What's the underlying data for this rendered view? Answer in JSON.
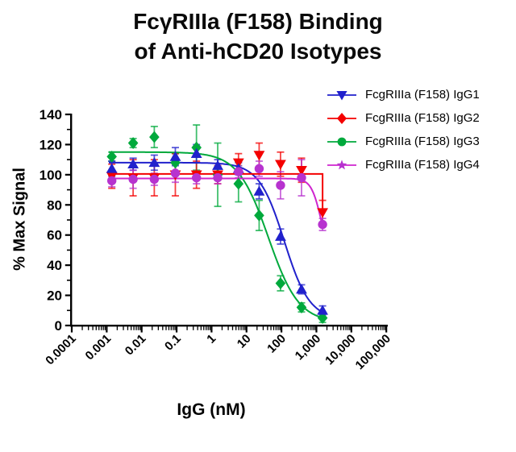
{
  "title": {
    "line1": "FcγRIIIa (F158) Binding",
    "line2": "of Anti-hCD20 Isotypes"
  },
  "axes": {
    "x_label": "IgG (nM)",
    "y_label": "% Max Signal",
    "x_scale": "log",
    "x_tick_labels": [
      "0.0001",
      "0.001",
      "0.01",
      "0.1",
      "1",
      "10",
      "100",
      "1,000",
      "10,000",
      "100,000"
    ],
    "x_log_range": [
      -4,
      5
    ],
    "y_ticks": [
      0,
      20,
      40,
      60,
      80,
      100,
      120,
      140
    ],
    "y_minor_ticks": [
      10,
      30,
      50,
      70,
      90,
      110,
      130
    ],
    "y_range": [
      0,
      140
    ],
    "grid": "off"
  },
  "legend": {
    "position": "top-right",
    "items": [
      "FcgRIIIa (F158) IgG1",
      "FcgRIIIa (F158) IgG2",
      "FcgRIIIa (F158) IgG3",
      "FcgRIIIa (F158) IgG4"
    ]
  },
  "chart_data": {
    "type": "scatter",
    "title": "FcγRIIIa (F158) Binding of Anti-hCD20 Isotypes",
    "xlabel": "IgG (nM)",
    "ylabel": "% Max Signal",
    "x_scale": "log",
    "x": [
      0.0014,
      0.0057,
      0.023,
      0.092,
      0.37,
      1.5,
      5.9,
      23,
      94,
      375,
      1500
    ],
    "series": [
      {
        "name": "FcgRIIIa (F158) IgG1",
        "color": "#2121cc",
        "marker": "triangle-up",
        "legend_marker": "triangle-down",
        "y": [
          104,
          107,
          108,
          112,
          114,
          106,
          104,
          89,
          59,
          24,
          10
        ],
        "err": [
          5,
          4,
          5,
          6,
          6,
          4,
          4,
          5,
          5,
          3,
          3
        ],
        "fit": {
          "type": "4pl",
          "top": 108,
          "bottom": 4,
          "ic50": 120,
          "hill": 1.2
        }
      },
      {
        "name": "FcgRIIIa (F158) IgG2",
        "color": "#f40000",
        "marker": "triangle-down",
        "legend_marker": "diamond",
        "y": [
          99,
          98,
          98,
          100,
          100,
          100,
          108,
          113,
          107,
          103,
          75
        ],
        "err": [
          8,
          12,
          12,
          14,
          9,
          6,
          6,
          8,
          8,
          8,
          8
        ],
        "fit": {
          "type": "flat-drop",
          "flat": 100.5,
          "drop_at": 1500,
          "drop_to": 75
        }
      },
      {
        "name": "FcgRIIIa (F158) IgG3",
        "color": "#00a93c",
        "marker": "diamond",
        "legend_marker": "circle",
        "y": [
          112,
          121,
          125,
          108,
          118,
          100,
          94,
          73,
          28,
          12,
          5
        ],
        "err": [
          3,
          3,
          7,
          6,
          15,
          21,
          12,
          10,
          5,
          3,
          3
        ],
        "fit": {
          "type": "4pl",
          "top": 115,
          "bottom": 2,
          "ic50": 42,
          "hill": 1.0
        }
      },
      {
        "name": "FcgRIIIa (F158) IgG4",
        "color": "#b733cf",
        "line_color": "#cf25cf",
        "marker": "circle",
        "legend_marker": "star",
        "y": [
          96,
          97,
          97,
          101,
          98,
          98,
          102,
          104,
          93,
          98,
          67
        ],
        "err": [
          4,
          6,
          4,
          6,
          4,
          4,
          4,
          5,
          9,
          12,
          4
        ],
        "fit": {
          "type": "4pl",
          "top": 97.5,
          "bottom": 40,
          "ic50": 1400,
          "hill": 3,
          "xmax": 1500
        }
      }
    ]
  }
}
